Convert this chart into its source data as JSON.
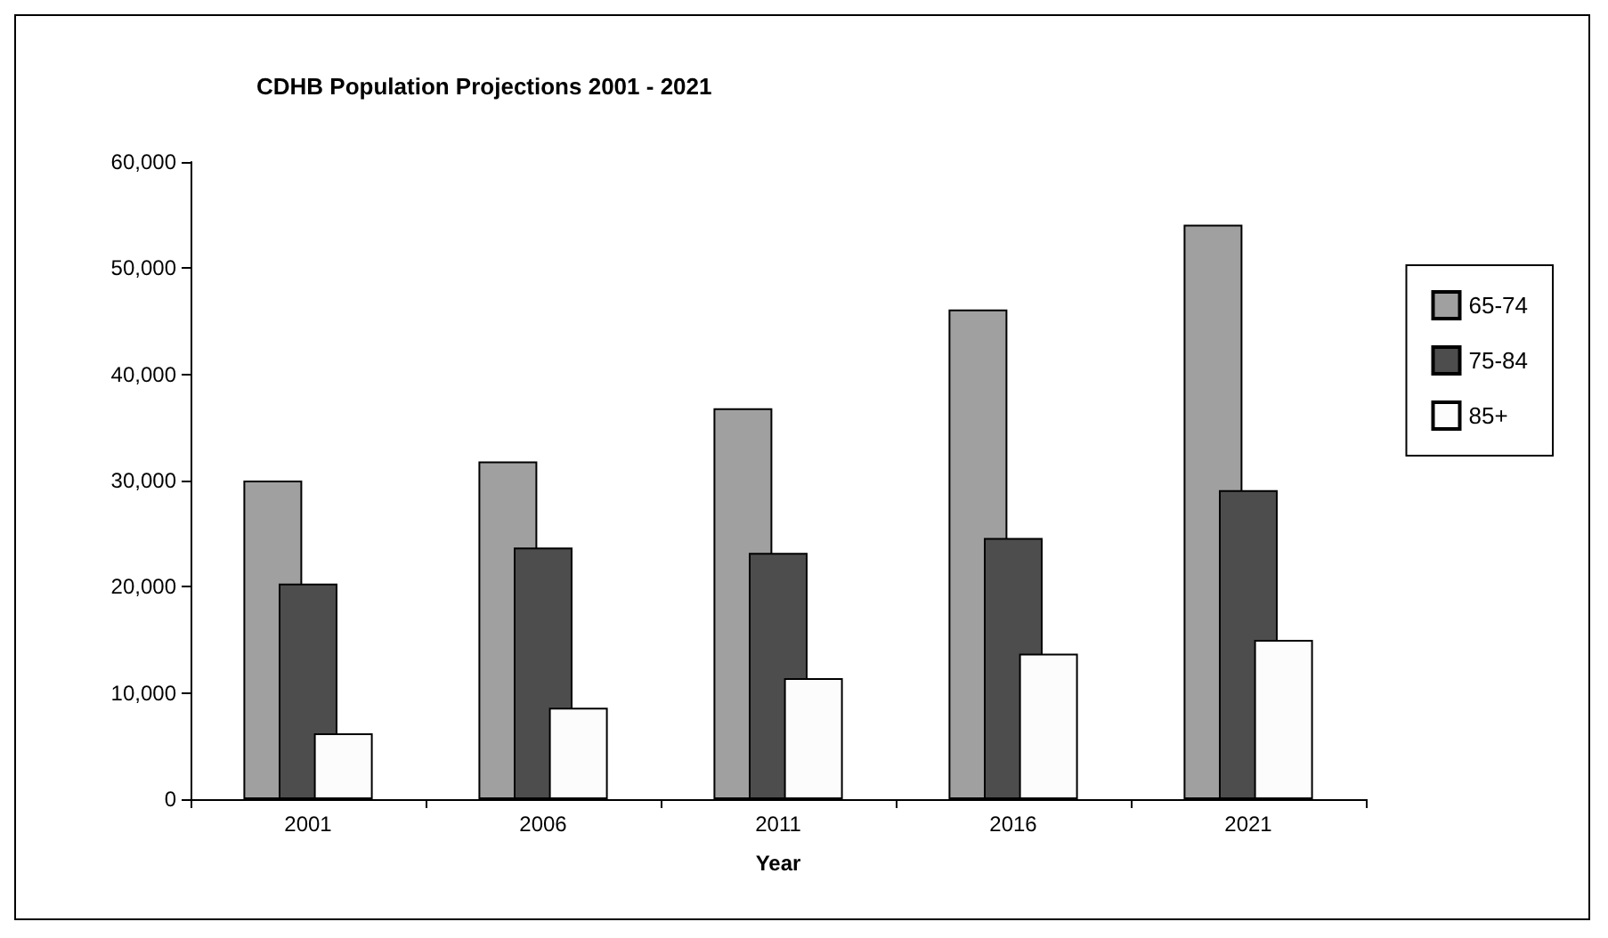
{
  "chart_data": {
    "type": "bar",
    "title": "CDHB Population Projections 2001 - 2021",
    "xlabel": "Year",
    "categories": [
      "2001",
      "2006",
      "2011",
      "2016",
      "2021"
    ],
    "series": [
      {
        "name": "65-74",
        "color": "#a0a0a0",
        "values": [
          30000,
          31800,
          36800,
          46100,
          54100
        ]
      },
      {
        "name": "75-84",
        "color": "#4d4d4d",
        "values": [
          20300,
          23700,
          23200,
          24600,
          29100
        ]
      },
      {
        "name": "85+",
        "color": "#fcfcfc",
        "values": [
          6200,
          8600,
          11400,
          13700,
          15000
        ]
      }
    ],
    "ylim": [
      0,
      60000
    ],
    "yticks": [
      0,
      {
        "value": 10000,
        "label": "10,000"
      },
      {
        "value": 20000,
        "label": "20,000"
      },
      {
        "value": 30000,
        "label": "30,000"
      },
      {
        "value": 40000,
        "label": "40,000"
      },
      {
        "value": 50000,
        "label": "50,000"
      },
      {
        "value": 60000,
        "label": "60,000"
      }
    ],
    "grid": false,
    "legend": "right"
  }
}
